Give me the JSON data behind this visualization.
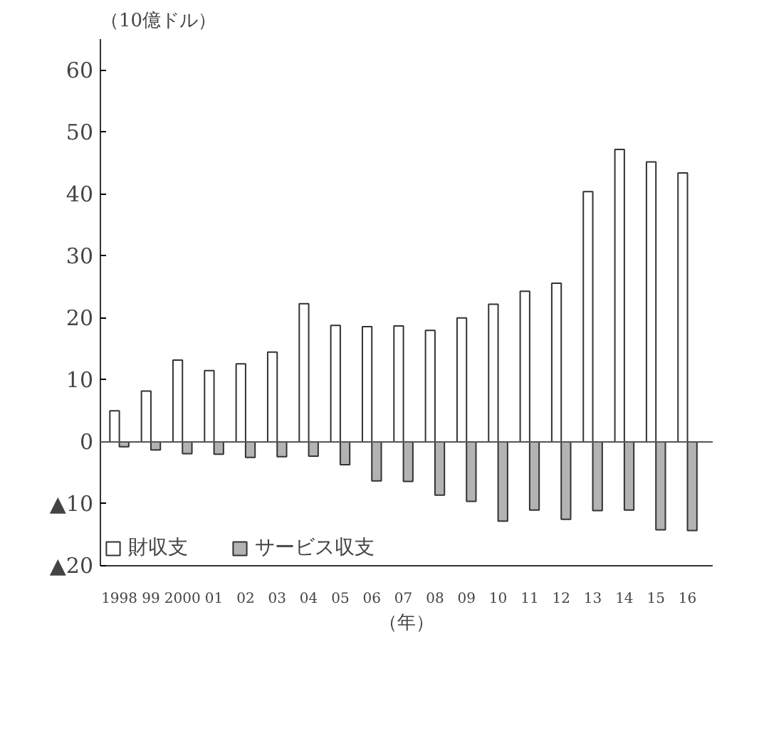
{
  "chart_data": {
    "type": "bar",
    "ylabel": "（10億ドル）",
    "xlabel": "（年）",
    "categories": [
      "1998",
      "99",
      "2000",
      "01",
      "02",
      "03",
      "04",
      "05",
      "06",
      "07",
      "08",
      "09",
      "10",
      "11",
      "12",
      "13",
      "14",
      "15",
      "16"
    ],
    "series": [
      {
        "name": "財収支",
        "color": "#ffffff",
        "values": [
          5.0,
          8.2,
          13.2,
          11.5,
          12.6,
          14.5,
          22.3,
          18.8,
          18.6,
          18.7,
          18.0,
          20.0,
          22.2,
          24.3,
          25.6,
          40.4,
          47.2,
          45.2,
          43.4
        ]
      },
      {
        "name": "サービス収支",
        "color": "#b3b3b3",
        "values": [
          -0.8,
          -1.3,
          -1.9,
          -2.0,
          -2.5,
          -2.4,
          -2.3,
          -3.7,
          -6.3,
          -6.4,
          -8.6,
          -9.6,
          -12.8,
          -11.0,
          -12.5,
          -11.1,
          -11.0,
          -14.2,
          -14.3
        ]
      }
    ],
    "ylim": [
      -20,
      65
    ],
    "yticks": [
      {
        "value": -20,
        "label": "▲20"
      },
      {
        "value": -10,
        "label": "▲10"
      },
      0,
      10,
      20,
      30,
      40,
      50,
      60
    ],
    "ref_lines": [
      {
        "axis": "y",
        "value": 0,
        "color": "#555555"
      }
    ],
    "grid": false,
    "legend": "bottom left"
  }
}
